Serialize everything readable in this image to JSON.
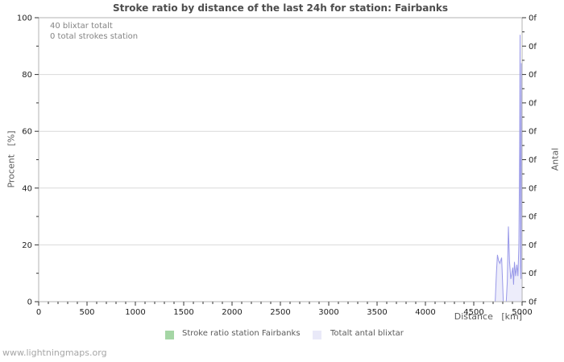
{
  "page": {
    "watermark": "www.lightningmaps.org"
  },
  "chart_data": {
    "type": "line",
    "title": "Stroke ratio by distance of the last 24h for station: Fairbanks",
    "annotations": [
      "40 blixtar totalt",
      "0 total strokes station"
    ],
    "x_axis": {
      "label": "Distance   [km]",
      "min": 0,
      "max": 5000,
      "major_tick_step": 500,
      "minor_tick_step": 100,
      "tick_labels": [
        "0",
        "500",
        "1000",
        "1500",
        "2000",
        "2500",
        "3000",
        "3500",
        "4000",
        "4500",
        "5000"
      ]
    },
    "y_axis_left": {
      "label": "Procent   [%]",
      "min": 0,
      "max": 100,
      "major_tick_step": 20,
      "minor_tick_step": 10,
      "tick_labels": [
        "0",
        "20",
        "40",
        "60",
        "80",
        "100"
      ]
    },
    "y_axis_right": {
      "label": "Antal",
      "tick_label_text": "0f",
      "major_tick_count": 11
    },
    "grid": "horizontal-major-only",
    "legend_position": "bottom",
    "colors": {
      "grid": "#d9d9d9",
      "border": "#b3b3b3",
      "tick": "#333333",
      "tick_label": "#222222"
    },
    "series": [
      {
        "name": "Stroke ratio station Fairbanks",
        "legend_color": "#a5d6a5",
        "line_color": "#a5d6a5",
        "values_unit": "percent",
        "points": [
          [
            0,
            0
          ],
          [
            5000,
            0
          ]
        ]
      },
      {
        "name": "Totalt antal blixtar",
        "legend_color": "#e9e9f8",
        "line_color": "#9898e8",
        "fill_color": "#ededfb",
        "values_unit": "percent_of_plot_height",
        "points": [
          [
            0,
            0
          ],
          [
            4500,
            0
          ],
          [
            4722,
            0
          ],
          [
            4734,
            10
          ],
          [
            4745,
            16.5
          ],
          [
            4757,
            14.5
          ],
          [
            4770,
            13.5
          ],
          [
            4788,
            15.5
          ],
          [
            4806,
            0
          ],
          [
            4836,
            0
          ],
          [
            4847,
            7
          ],
          [
            4858,
            26.5
          ],
          [
            4870,
            14
          ],
          [
            4883,
            8
          ],
          [
            4904,
            12
          ],
          [
            4912,
            6
          ],
          [
            4921,
            14
          ],
          [
            4933,
            9
          ],
          [
            4946,
            13
          ],
          [
            4957,
            9
          ],
          [
            4967,
            20
          ],
          [
            4975,
            55
          ],
          [
            4979,
            94
          ],
          [
            4984,
            12
          ],
          [
            4988,
            8
          ],
          [
            4993,
            84
          ],
          [
            5000,
            72
          ]
        ]
      }
    ]
  }
}
